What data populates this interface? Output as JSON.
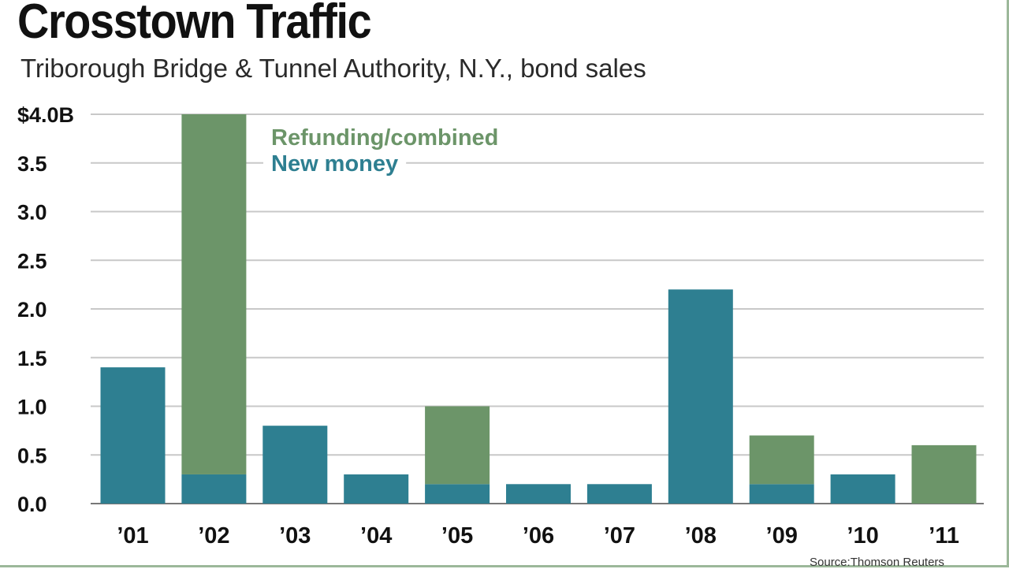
{
  "header": {
    "title": "Crosstown Traffic",
    "subtitle": "Triborough Bridge & Tunnel Authority, N.Y., bond sales"
  },
  "footer": {
    "source": "Source:Thomson Reuters"
  },
  "colors": {
    "new_money": "#2e7f91",
    "refunding": "#6c9569",
    "grid": "#c8c8c8",
    "frame": "#9cb89a"
  },
  "chart_data": {
    "type": "bar",
    "stacked": true,
    "title": "Crosstown Traffic",
    "subtitle": "Triborough Bridge & Tunnel Authority, N.Y., bond sales",
    "xlabel": "",
    "ylabel": "",
    "ylim": [
      0,
      4.0
    ],
    "y_ticks": [
      0.0,
      0.5,
      1.0,
      1.5,
      2.0,
      2.5,
      3.0,
      3.5,
      4.0
    ],
    "y_tick_labels": [
      "0.0",
      "0.5",
      "1.0",
      "1.5",
      "2.0",
      "2.5",
      "3.0",
      "3.5",
      "$4.0B"
    ],
    "categories": [
      "’01",
      "’02",
      "’03",
      "’04",
      "’05",
      "’06",
      "’07",
      "’08",
      "’09",
      "’10",
      "’11"
    ],
    "series": [
      {
        "name": "New money",
        "color": "#2e7f91",
        "values": [
          1.4,
          0.3,
          0.8,
          0.3,
          0.2,
          0.2,
          0.2,
          2.2,
          0.2,
          0.3,
          0.0
        ]
      },
      {
        "name": "Refunding/combined",
        "color": "#6c9569",
        "values": [
          0.0,
          3.7,
          0.0,
          0.0,
          0.8,
          0.0,
          0.0,
          0.0,
          0.5,
          0.0,
          0.6
        ]
      }
    ],
    "legend": [
      {
        "label": "Refunding/combined",
        "color": "#6c9569"
      },
      {
        "label": "New money",
        "color": "#2e7f91"
      }
    ],
    "legend_position": "top-center",
    "grid": true
  }
}
